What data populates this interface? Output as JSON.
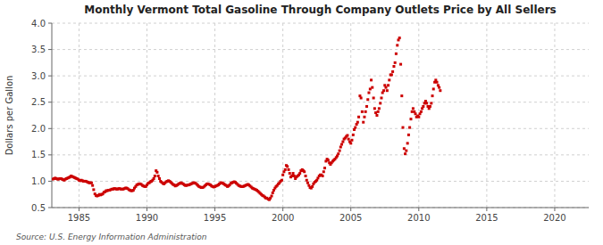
{
  "chart_data": {
    "type": "scatter",
    "title": "Monthly Vermont Total Gasoline Through Company Outlets Price by All Sellers",
    "y_label": "Dollars per Gallon",
    "annotations": [
      "Source: U.S. Energy Information Administration"
    ],
    "color": "#cc0000",
    "marker": "square",
    "grid": true,
    "xlim": [
      1983.0,
      2022.5
    ],
    "ylim": [
      0.5,
      4.0
    ],
    "xticks": [
      1985,
      1990,
      1995,
      2000,
      2005,
      2010,
      2015,
      2020
    ],
    "yticks": [
      0.5,
      {
        "value": 1.0,
        "label": "1.0"
      },
      1.5,
      {
        "value": 2.0,
        "label": "2.0"
      },
      2.5,
      {
        "value": 3.0,
        "label": "3.0"
      },
      3.5,
      {
        "value": 4.0,
        "label": "4.0"
      }
    ],
    "x": [
      1983.08,
      1983.17,
      1983.25,
      1983.33,
      1983.42,
      1983.5,
      1983.58,
      1983.67,
      1983.75,
      1983.83,
      1983.92,
      1984.0,
      1984.08,
      1984.17,
      1984.25,
      1984.33,
      1984.42,
      1984.5,
      1984.58,
      1984.67,
      1984.75,
      1984.83,
      1984.92,
      1985.0,
      1985.08,
      1985.17,
      1985.25,
      1985.33,
      1985.42,
      1985.5,
      1985.58,
      1985.67,
      1985.75,
      1985.83,
      1985.92,
      1986.0,
      1986.08,
      1986.17,
      1986.25,
      1986.33,
      1986.42,
      1986.5,
      1986.58,
      1986.67,
      1986.75,
      1986.83,
      1986.92,
      1987.0,
      1987.08,
      1987.17,
      1987.25,
      1987.33,
      1987.42,
      1987.5,
      1987.58,
      1987.67,
      1987.75,
      1987.83,
      1987.92,
      1988.0,
      1988.08,
      1988.17,
      1988.25,
      1988.33,
      1988.42,
      1988.5,
      1988.58,
      1988.67,
      1988.75,
      1988.83,
      1988.92,
      1989.0,
      1989.08,
      1989.17,
      1989.25,
      1989.33,
      1989.42,
      1989.5,
      1989.58,
      1989.67,
      1989.75,
      1989.83,
      1989.92,
      1990.0,
      1990.08,
      1990.17,
      1990.25,
      1990.33,
      1990.42,
      1990.5,
      1990.58,
      1990.67,
      1990.75,
      1990.83,
      1990.92,
      1991.0,
      1991.08,
      1991.17,
      1991.25,
      1991.33,
      1991.42,
      1991.5,
      1991.58,
      1991.67,
      1991.75,
      1991.83,
      1991.92,
      1992.0,
      1992.08,
      1992.17,
      1992.25,
      1992.33,
      1992.42,
      1992.5,
      1992.58,
      1992.67,
      1992.75,
      1992.83,
      1992.92,
      1993.0,
      1993.08,
      1993.17,
      1993.25,
      1993.33,
      1993.42,
      1993.5,
      1993.58,
      1993.67,
      1993.75,
      1993.83,
      1993.92,
      1994.0,
      1994.08,
      1994.17,
      1994.25,
      1994.33,
      1994.42,
      1994.5,
      1994.58,
      1994.67,
      1994.75,
      1994.83,
      1994.92,
      1995.0,
      1995.08,
      1995.17,
      1995.25,
      1995.33,
      1995.42,
      1995.5,
      1995.58,
      1995.67,
      1995.75,
      1995.83,
      1995.92,
      1996.0,
      1996.08,
      1996.17,
      1996.25,
      1996.33,
      1996.42,
      1996.5,
      1996.58,
      1996.67,
      1996.75,
      1996.83,
      1996.92,
      1997.0,
      1997.08,
      1997.17,
      1997.25,
      1997.33,
      1997.42,
      1997.5,
      1997.58,
      1997.67,
      1997.75,
      1997.83,
      1997.92,
      1998.0,
      1998.08,
      1998.17,
      1998.25,
      1998.33,
      1998.42,
      1998.5,
      1998.58,
      1998.67,
      1998.75,
      1998.83,
      1998.92,
      1999.0,
      1999.08,
      1999.17,
      1999.25,
      1999.33,
      1999.42,
      1999.5,
      1999.58,
      1999.67,
      1999.75,
      1999.83,
      1999.92,
      2000.0,
      2000.08,
      2000.17,
      2000.25,
      2000.33,
      2000.42,
      2000.5,
      2000.58,
      2000.67,
      2000.75,
      2000.83,
      2000.92,
      2001.0,
      2001.08,
      2001.17,
      2001.25,
      2001.33,
      2001.42,
      2001.5,
      2001.58,
      2001.67,
      2001.75,
      2001.83,
      2001.92,
      2002.0,
      2002.08,
      2002.17,
      2002.25,
      2002.33,
      2002.42,
      2002.5,
      2002.58,
      2002.67,
      2002.75,
      2002.83,
      2002.92,
      2003.0,
      2003.08,
      2003.17,
      2003.25,
      2003.33,
      2003.42,
      2003.5,
      2003.58,
      2003.67,
      2003.75,
      2003.83,
      2003.92,
      2004.0,
      2004.08,
      2004.17,
      2004.25,
      2004.33,
      2004.42,
      2004.5,
      2004.58,
      2004.67,
      2004.75,
      2004.83,
      2004.92,
      2005.0,
      2005.08,
      2005.17,
      2005.25,
      2005.33,
      2005.42,
      2005.5,
      2005.58,
      2005.67,
      2005.75,
      2005.83,
      2005.92,
      2006.0,
      2006.08,
      2006.17,
      2006.25,
      2006.33,
      2006.42,
      2006.5,
      2006.58,
      2006.67,
      2006.75,
      2006.83,
      2006.92,
      2007.0,
      2007.08,
      2007.17,
      2007.25,
      2007.33,
      2007.42,
      2007.5,
      2007.58,
      2007.67,
      2007.75,
      2007.83,
      2007.92,
      2008.0,
      2008.08,
      2008.17,
      2008.25,
      2008.33,
      2008.42,
      2008.5,
      2008.58,
      2008.67,
      2008.75,
      2008.83,
      2008.92,
      2009.0,
      2009.08,
      2009.17,
      2009.25,
      2009.33,
      2009.42,
      2009.5,
      2009.58,
      2009.67,
      2009.75,
      2009.83,
      2009.92,
      2010.0,
      2010.08,
      2010.17,
      2010.25,
      2010.33,
      2010.42,
      2010.5,
      2010.58,
      2010.67,
      2010.75,
      2010.83,
      2010.92,
      2011.0,
      2011.08,
      2011.17,
      2011.25,
      2011.33,
      2011.42,
      2011.5,
      2011.58
    ],
    "values": [
      1.04,
      1.05,
      1.06,
      1.05,
      1.04,
      1.04,
      1.05,
      1.05,
      1.04,
      1.03,
      1.02,
      1.04,
      1.05,
      1.06,
      1.07,
      1.08,
      1.1,
      1.09,
      1.08,
      1.07,
      1.06,
      1.05,
      1.04,
      1.02,
      1.01,
      1.02,
      1.01,
      1.0,
      1.0,
      1.0,
      0.99,
      0.98,
      0.97,
      0.97,
      0.97,
      0.92,
      0.84,
      0.76,
      0.73,
      0.72,
      0.73,
      0.75,
      0.74,
      0.75,
      0.76,
      0.79,
      0.8,
      0.82,
      0.82,
      0.83,
      0.83,
      0.84,
      0.85,
      0.85,
      0.86,
      0.86,
      0.85,
      0.85,
      0.86,
      0.86,
      0.85,
      0.85,
      0.85,
      0.86,
      0.87,
      0.87,
      0.86,
      0.84,
      0.83,
      0.82,
      0.82,
      0.83,
      0.87,
      0.9,
      0.93,
      0.94,
      0.95,
      0.95,
      0.94,
      0.92,
      0.91,
      0.9,
      0.9,
      0.93,
      0.96,
      0.97,
      0.99,
      1.0,
      1.02,
      1.05,
      1.1,
      1.2,
      1.17,
      1.1,
      1.05,
      1.0,
      0.98,
      0.96,
      0.95,
      0.97,
      0.99,
      1.0,
      1.01,
      1.0,
      0.98,
      0.96,
      0.94,
      0.93,
      0.91,
      0.92,
      0.93,
      0.95,
      0.96,
      0.97,
      0.96,
      0.95,
      0.93,
      0.92,
      0.92,
      0.93,
      0.93,
      0.94,
      0.95,
      0.96,
      0.97,
      0.97,
      0.96,
      0.94,
      0.92,
      0.9,
      0.89,
      0.88,
      0.88,
      0.89,
      0.91,
      0.93,
      0.95,
      0.95,
      0.94,
      0.93,
      0.91,
      0.9,
      0.89,
      0.9,
      0.91,
      0.92,
      0.93,
      0.95,
      0.97,
      0.97,
      0.96,
      0.95,
      0.93,
      0.92,
      0.9,
      0.91,
      0.93,
      0.96,
      0.97,
      0.98,
      0.99,
      0.98,
      0.96,
      0.94,
      0.92,
      0.91,
      0.9,
      0.9,
      0.9,
      0.91,
      0.92,
      0.93,
      0.94,
      0.93,
      0.91,
      0.89,
      0.87,
      0.86,
      0.85,
      0.84,
      0.83,
      0.81,
      0.79,
      0.77,
      0.75,
      0.73,
      0.72,
      0.7,
      0.68,
      0.68,
      0.66,
      0.65,
      0.68,
      0.72,
      0.78,
      0.83,
      0.87,
      0.9,
      0.92,
      0.95,
      0.97,
      1.0,
      1.02,
      1.12,
      1.18,
      1.22,
      1.3,
      1.28,
      1.22,
      1.15,
      1.08,
      1.1,
      1.15,
      1.1,
      1.05,
      1.08,
      1.1,
      1.12,
      1.15,
      1.2,
      1.22,
      1.2,
      1.18,
      1.1,
      1.02,
      0.97,
      0.92,
      0.88,
      0.87,
      0.9,
      0.95,
      0.98,
      1.0,
      1.02,
      1.06,
      1.1,
      1.12,
      1.12,
      1.1,
      1.18,
      1.25,
      1.38,
      1.42,
      1.4,
      1.35,
      1.32,
      1.35,
      1.38,
      1.4,
      1.42,
      1.45,
      1.48,
      1.52,
      1.58,
      1.65,
      1.7,
      1.75,
      1.8,
      1.82,
      1.85,
      1.87,
      1.8,
      1.75,
      1.72,
      1.78,
      1.88,
      1.98,
      2.02,
      2.08,
      2.12,
      2.22,
      2.62,
      2.58,
      2.32,
      2.12,
      2.22,
      2.32,
      2.42,
      2.55,
      2.68,
      2.75,
      2.92,
      2.78,
      2.58,
      2.38,
      2.3,
      2.25,
      2.32,
      2.38,
      2.48,
      2.58,
      2.68,
      2.72,
      2.82,
      2.78,
      2.72,
      2.82,
      2.92,
      3.02,
      3.02,
      3.08,
      3.18,
      3.25,
      3.42,
      3.58,
      3.68,
      3.72,
      3.22,
      2.62,
      2.02,
      1.62,
      1.52,
      1.58,
      1.72,
      1.88,
      2.02,
      2.18,
      2.32,
      2.38,
      2.32,
      2.28,
      2.22,
      2.24,
      2.22,
      2.28,
      2.32,
      2.38,
      2.42,
      2.48,
      2.52,
      2.48,
      2.42,
      2.38,
      2.42,
      2.48,
      2.62,
      2.75,
      2.88,
      2.92,
      2.88,
      2.82,
      2.78,
      2.72
    ]
  }
}
